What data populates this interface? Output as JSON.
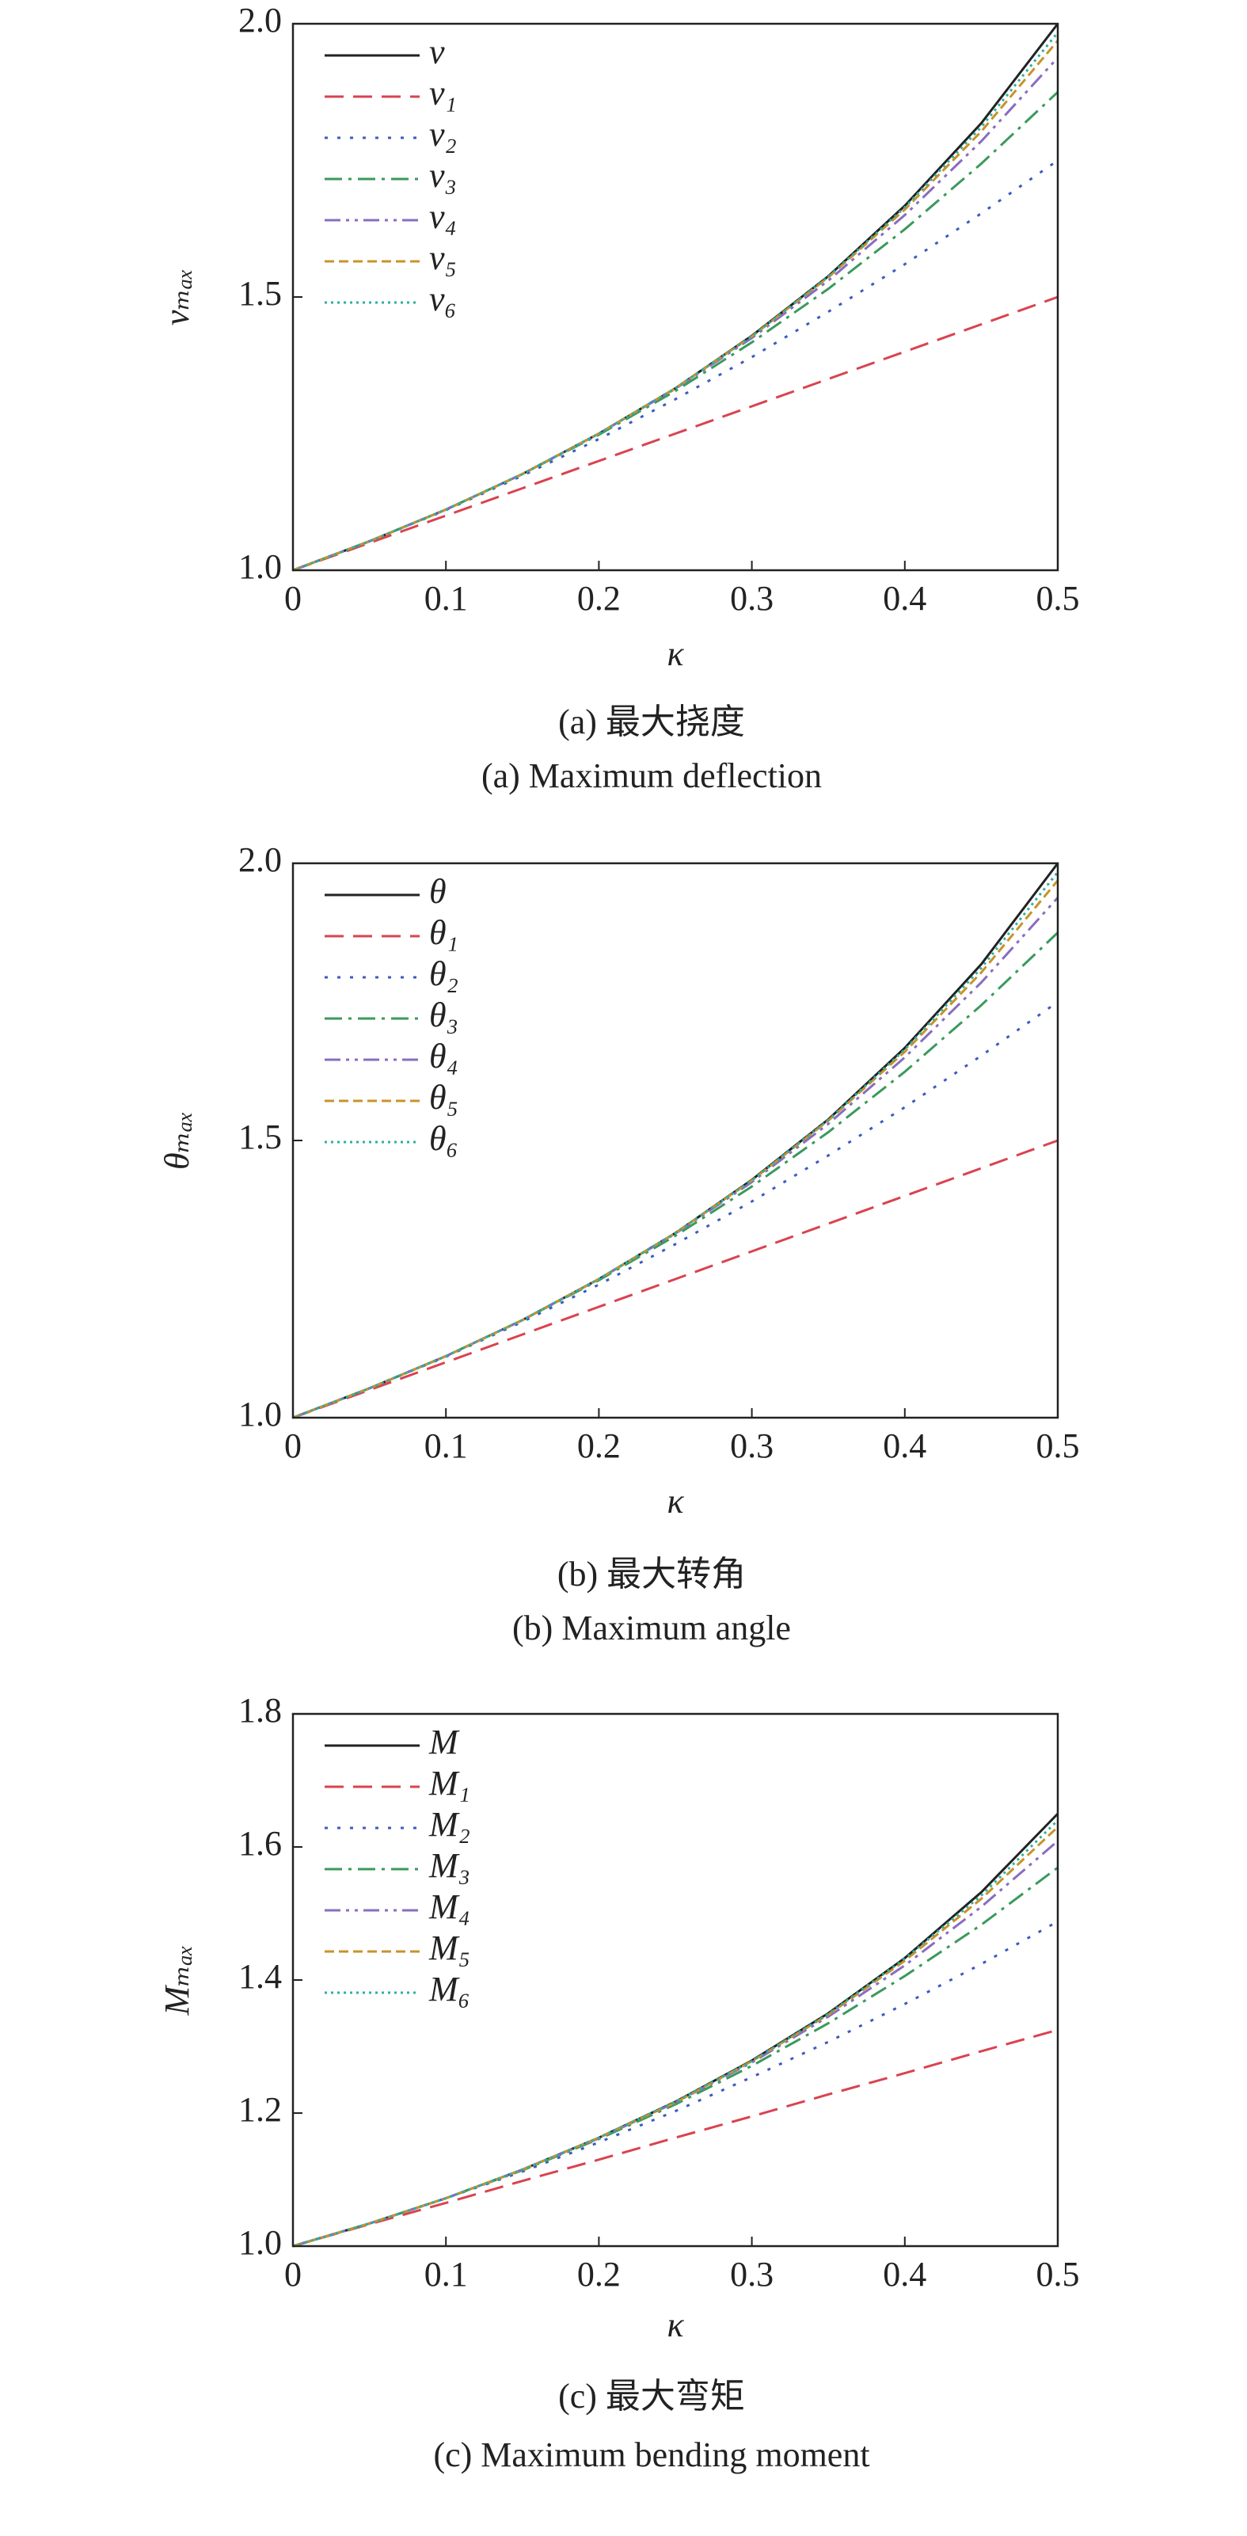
{
  "chart_data": [
    {
      "type": "line",
      "x_label": "κ",
      "y_label": "vₘₐₓ",
      "caption_zh": "(a) 最大挠度",
      "caption_en": "(a) Maximum deflection",
      "x": [
        0,
        0.05,
        0.1,
        0.15,
        0.2,
        0.25,
        0.3,
        0.35,
        0.4,
        0.45,
        0.5
      ],
      "xlim": [
        0,
        0.5
      ],
      "xticks": [
        0,
        0.1,
        0.2,
        0.3,
        0.4,
        0.5
      ],
      "ylim": [
        1,
        2
      ],
      "yticks": [
        {
          "value": 1,
          "label": "1.0"
        },
        {
          "value": 1.5,
          "label": "1.5"
        },
        {
          "value": 2,
          "label": "2.0"
        }
      ],
      "legend": "upper left",
      "series": [
        {
          "name": "v",
          "color": "#222222",
          "style": "solid",
          "values": [
            1,
            1.053,
            1.111,
            1.176,
            1.25,
            1.333,
            1.429,
            1.538,
            1.667,
            1.818,
            2
          ]
        },
        {
          "name": "v₁",
          "color": "#d9434f",
          "style": "dashed",
          "values": [
            1,
            1.05,
            1.1,
            1.15,
            1.2,
            1.25,
            1.3,
            1.35,
            1.4,
            1.45,
            1.5
          ]
        },
        {
          "name": "v₂",
          "color": "#3d5bbf",
          "style": "dotted",
          "values": [
            1,
            1.053,
            1.11,
            1.173,
            1.24,
            1.313,
            1.39,
            1.473,
            1.56,
            1.653,
            1.75
          ]
        },
        {
          "name": "v₃",
          "color": "#3a9a5c",
          "style": "dashdot",
          "values": [
            1,
            1.053,
            1.111,
            1.176,
            1.248,
            1.328,
            1.417,
            1.515,
            1.624,
            1.744,
            1.875
          ]
        },
        {
          "name": "v₄",
          "color": "#8a6cc0",
          "style": "dashdotdot",
          "values": [
            1,
            1.053,
            1.111,
            1.176,
            1.25,
            1.332,
            1.425,
            1.53,
            1.65,
            1.785,
            1.938
          ]
        },
        {
          "name": "v₅",
          "color": "#c8932a",
          "style": "shortdash",
          "values": [
            1,
            1.053,
            1.111,
            1.176,
            1.25,
            1.333,
            1.428,
            1.536,
            1.66,
            1.803,
            1.969
          ]
        },
        {
          "name": "v₆",
          "color": "#2bb0a0",
          "style": "finedot",
          "values": [
            1,
            1.053,
            1.111,
            1.176,
            1.25,
            1.333,
            1.428,
            1.537,
            1.664,
            1.811,
            1.984
          ]
        }
      ]
    },
    {
      "type": "line",
      "x_label": "κ",
      "y_label": "θₘₐₓ",
      "caption_zh": "(b) 最大转角",
      "caption_en": "(b) Maximum angle",
      "x": [
        0,
        0.05,
        0.1,
        0.15,
        0.2,
        0.25,
        0.3,
        0.35,
        0.4,
        0.45,
        0.5
      ],
      "xlim": [
        0,
        0.5
      ],
      "xticks": [
        0,
        0.1,
        0.2,
        0.3,
        0.4,
        0.5
      ],
      "ylim": [
        1,
        2
      ],
      "yticks": [
        {
          "value": 1,
          "label": "1.0"
        },
        {
          "value": 1.5,
          "label": "1.5"
        },
        {
          "value": 2,
          "label": "2.0"
        }
      ],
      "legend": "upper left",
      "series": [
        {
          "name": "θ",
          "color": "#222222",
          "style": "solid",
          "values": [
            1,
            1.053,
            1.111,
            1.176,
            1.25,
            1.333,
            1.429,
            1.538,
            1.667,
            1.818,
            2
          ]
        },
        {
          "name": "θ₁",
          "color": "#d9434f",
          "style": "dashed",
          "values": [
            1,
            1.05,
            1.1,
            1.15,
            1.2,
            1.25,
            1.3,
            1.35,
            1.4,
            1.45,
            1.5
          ]
        },
        {
          "name": "θ₂",
          "color": "#3d5bbf",
          "style": "dotted",
          "values": [
            1,
            1.053,
            1.11,
            1.173,
            1.24,
            1.313,
            1.39,
            1.473,
            1.56,
            1.653,
            1.75
          ]
        },
        {
          "name": "θ₃",
          "color": "#3a9a5c",
          "style": "dashdot",
          "values": [
            1,
            1.053,
            1.111,
            1.176,
            1.248,
            1.328,
            1.417,
            1.515,
            1.624,
            1.744,
            1.875
          ]
        },
        {
          "name": "θ₄",
          "color": "#8a6cc0",
          "style": "dashdotdot",
          "values": [
            1,
            1.053,
            1.111,
            1.176,
            1.25,
            1.332,
            1.425,
            1.53,
            1.65,
            1.785,
            1.938
          ]
        },
        {
          "name": "θ₅",
          "color": "#c8932a",
          "style": "shortdash",
          "values": [
            1,
            1.053,
            1.111,
            1.176,
            1.25,
            1.333,
            1.428,
            1.536,
            1.66,
            1.803,
            1.969
          ]
        },
        {
          "name": "θ₆",
          "color": "#2bb0a0",
          "style": "finedot",
          "values": [
            1,
            1.053,
            1.111,
            1.176,
            1.25,
            1.333,
            1.428,
            1.537,
            1.664,
            1.811,
            1.984
          ]
        }
      ]
    },
    {
      "type": "line",
      "x_label": "κ",
      "y_label": "Mₘₐₓ",
      "caption_zh": "(c) 最大弯矩",
      "caption_en": "(c) Maximum bending moment",
      "x": [
        0,
        0.05,
        0.1,
        0.15,
        0.2,
        0.25,
        0.3,
        0.35,
        0.4,
        0.45,
        0.5
      ],
      "xlim": [
        0,
        0.5
      ],
      "xticks": [
        0,
        0.1,
        0.2,
        0.3,
        0.4,
        0.5
      ],
      "ylim": [
        1,
        1.8
      ],
      "yticks": [
        {
          "value": 1,
          "label": "1.0"
        },
        {
          "value": 1.2,
          "label": "1.2"
        },
        {
          "value": 1.4,
          "label": "1.4"
        },
        {
          "value": 1.6,
          "label": "1.6"
        },
        {
          "value": 1.8,
          "label": "1.8"
        }
      ],
      "legend": "upper left",
      "series": [
        {
          "name": "M",
          "color": "#222222",
          "style": "solid",
          "values": [
            1,
            1.034,
            1.072,
            1.115,
            1.163,
            1.217,
            1.279,
            1.35,
            1.433,
            1.532,
            1.65
          ]
        },
        {
          "name": "M₁",
          "color": "#d9434f",
          "style": "dashed",
          "values": [
            1,
            1.033,
            1.065,
            1.098,
            1.13,
            1.163,
            1.195,
            1.228,
            1.26,
            1.293,
            1.325
          ]
        },
        {
          "name": "M₂",
          "color": "#3d5bbf",
          "style": "dotted",
          "values": [
            1,
            1.034,
            1.072,
            1.112,
            1.156,
            1.203,
            1.254,
            1.307,
            1.364,
            1.424,
            1.488
          ]
        },
        {
          "name": "M₃",
          "color": "#3a9a5c",
          "style": "dashdot",
          "values": [
            1,
            1.034,
            1.072,
            1.114,
            1.161,
            1.213,
            1.271,
            1.335,
            1.406,
            1.483,
            1.569
          ]
        },
        {
          "name": "M₄",
          "color": "#8a6cc0",
          "style": "dashdotdot",
          "values": [
            1,
            1.034,
            1.072,
            1.115,
            1.162,
            1.216,
            1.276,
            1.345,
            1.422,
            1.51,
            1.609
          ]
        },
        {
          "name": "M₅",
          "color": "#c8932a",
          "style": "shortdash",
          "values": [
            1,
            1.034,
            1.072,
            1.115,
            1.163,
            1.216,
            1.278,
            1.348,
            1.429,
            1.522,
            1.63
          ]
        },
        {
          "name": "M₆",
          "color": "#2bb0a0",
          "style": "finedot",
          "values": [
            1,
            1.034,
            1.072,
            1.115,
            1.163,
            1.217,
            1.278,
            1.349,
            1.432,
            1.527,
            1.64
          ]
        }
      ]
    }
  ]
}
